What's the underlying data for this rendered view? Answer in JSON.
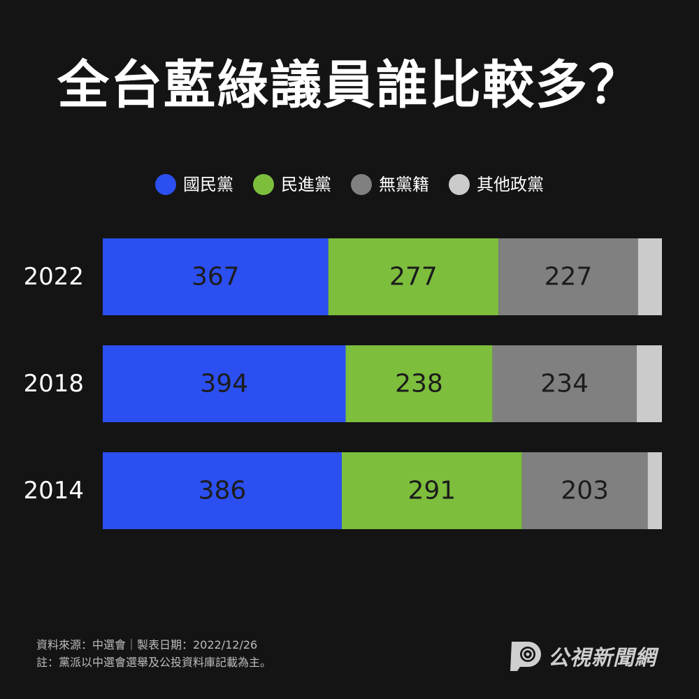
{
  "colors": {
    "background": "#141414",
    "kmt": "#2b4ff0",
    "dpp": "#7dbe3d",
    "independent": "#808080",
    "others": "#cbcbcb"
  },
  "chart_data": {
    "type": "bar",
    "orientation": "horizontal",
    "stacked": true,
    "title": "全台藍綠議員誰比較多？",
    "legend_position": "top-center",
    "categories": [
      "2022",
      "2018",
      "2014"
    ],
    "series": [
      {
        "name": "國民黨",
        "color": "#2b4ff0",
        "values": [
          367,
          394,
          386
        ]
      },
      {
        "name": "民進黨",
        "color": "#7dbe3d",
        "values": [
          277,
          238,
          291
        ]
      },
      {
        "name": "無黨籍",
        "color": "#808080",
        "values": [
          227,
          234,
          203
        ]
      },
      {
        "name": "其他政黨",
        "color": "#cbcbcb",
        "values": [
          39,
          41,
          23
        ]
      }
    ],
    "data_labels_for_series": [
      0,
      1,
      2
    ],
    "grid": false,
    "xlabel": "",
    "ylabel": ""
  },
  "footer": {
    "source": "資料來源：中選會｜製表日期：2022/12/26",
    "note": "註：黨派以中選會選舉及公投資料庫記載為主。"
  },
  "logo": {
    "text": "公視新聞網",
    "icon": "pts-logo-icon"
  }
}
